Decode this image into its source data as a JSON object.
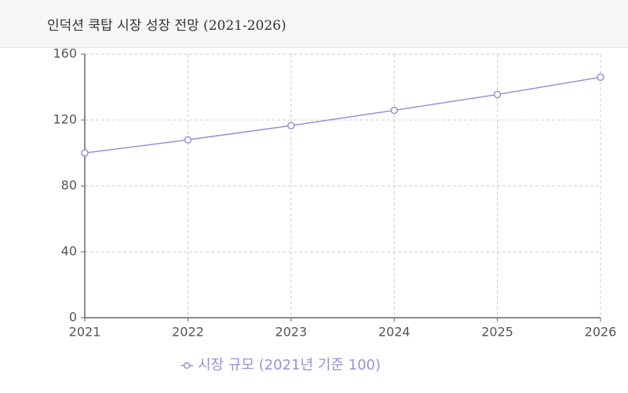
{
  "chart_data": {
    "type": "line",
    "title": "인덕션 쿡탑 시장 성장 전망 (2021-2026)",
    "categories": [
      "2021",
      "2022",
      "2023",
      "2024",
      "2025",
      "2026"
    ],
    "series": [
      {
        "name": "시장 규모 (2021년 기준 100)",
        "color": "#9a8fd8",
        "values": [
          100,
          108,
          116.6,
          125.9,
          135.5,
          146
        ]
      }
    ],
    "ylim": [
      0,
      160
    ],
    "yticks": [
      0,
      40,
      80,
      120,
      160
    ],
    "grid": true,
    "legend": "bottom"
  }
}
